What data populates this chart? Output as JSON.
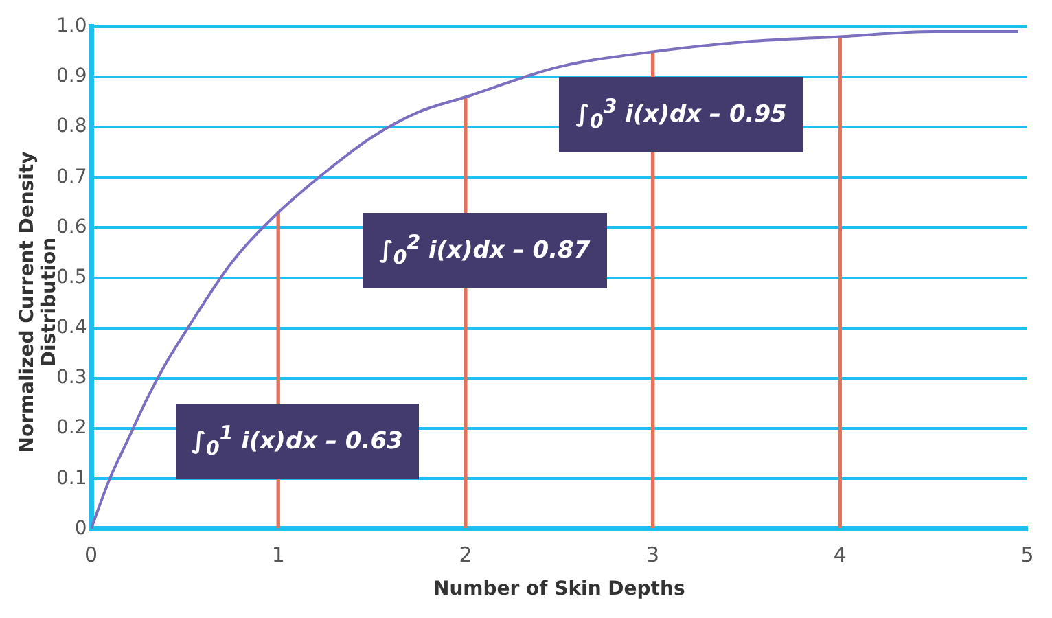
{
  "chart_data": {
    "type": "line",
    "xlabel": "Number of Skin Depths",
    "ylabel": "Normalized Current Density Distribution",
    "xlim": [
      0,
      5
    ],
    "xticks": [
      0,
      1,
      2,
      3,
      4,
      5
    ],
    "ylim": [
      0,
      1
    ],
    "yticks": [
      0,
      {
        "value": 0.1,
        "label": "0.1"
      },
      {
        "value": 0.2,
        "label": "0.2"
      },
      {
        "value": 0.3,
        "label": "0.3"
      },
      {
        "value": 0.4,
        "label": "0.4"
      },
      {
        "value": 0.5,
        "label": "0.5"
      },
      {
        "value": 0.6,
        "label": "0.6"
      },
      {
        "value": 0.7,
        "label": "0.7"
      },
      {
        "value": 0.8,
        "label": "0.8"
      },
      {
        "value": 0.9,
        "label": "0.9"
      },
      {
        "value": 1,
        "label": "1.0"
      }
    ],
    "grid": "y",
    "legend": false,
    "marker": "none",
    "line_style": "solid",
    "series": [
      {
        "color": "#7b6fc0",
        "x": [
          0,
          0.1,
          0.2,
          0.3,
          0.4,
          0.5,
          0.75,
          1,
          1.25,
          1.5,
          1.75,
          2,
          2.5,
          3,
          3.5,
          4,
          4.5,
          4.95
        ],
        "values": [
          0,
          0.1,
          0.18,
          0.26,
          0.33,
          0.39,
          0.53,
          0.63,
          0.71,
          0.78,
          0.83,
          0.86,
          0.92,
          0.95,
          0.97,
          0.98,
          0.99,
          0.99
        ]
      },
      {
        "type": "bar",
        "color": "#e8705a",
        "x": [
          1,
          2,
          3,
          4
        ],
        "values": [
          0.63,
          0.86,
          0.95,
          0.98
        ]
      }
    ],
    "annotations": [
      "∫$_{0}$$^{1}$ i(x)dx – 0.63",
      "∫$_{0}$$^{2}$ i(x)dx – 0.87",
      "∫$_{0}$$^{3}$ i(x)dx – 0.95"
    ]
  }
}
